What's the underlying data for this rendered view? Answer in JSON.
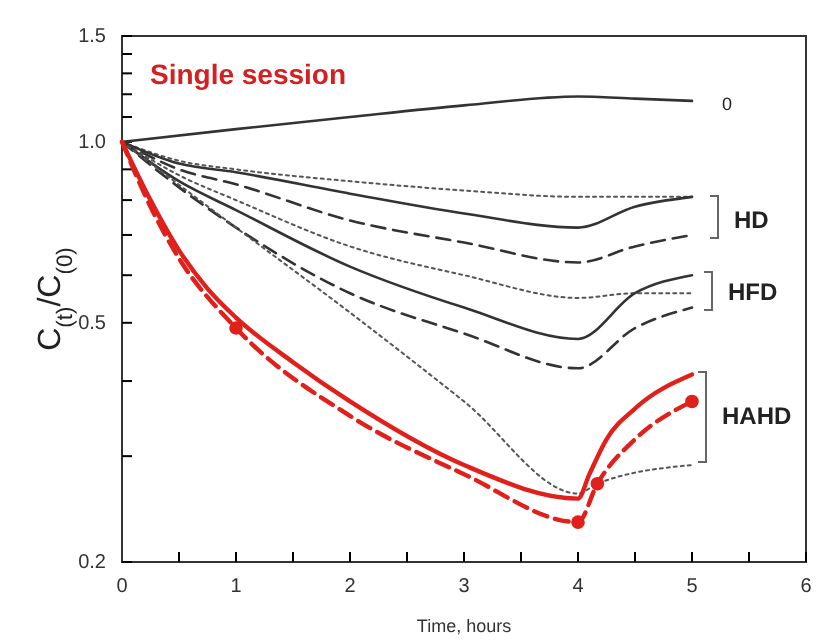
{
  "chart_data": {
    "type": "line",
    "title": "Single session",
    "xlabel": "Time, hours",
    "ylabel": "C$_{(t)}$/C$_{(0)}$",
    "log": true,
    "xlim": [
      0,
      6
    ],
    "xticks": [
      0,
      {
        "value": 0.5,
        "label": null
      },
      1,
      {
        "value": 1.5,
        "label": null
      },
      2,
      {
        "value": 2.5,
        "label": null
      },
      3,
      {
        "value": 3.5,
        "label": null
      },
      4,
      {
        "value": 4.5,
        "label": null
      },
      5,
      {
        "value": 5.5,
        "label": null
      },
      6
    ],
    "ylim": [
      0.2,
      1.5
    ],
    "yticks": [
      {
        "value": 0.2,
        "label": "0.2"
      },
      {
        "value": 0.3,
        "label": null
      },
      {
        "value": 0.4,
        "label": null
      },
      {
        "value": 0.5,
        "label": "0.5"
      },
      {
        "value": 0.6,
        "label": null
      },
      {
        "value": 0.7,
        "label": null
      },
      {
        "value": 0.8,
        "label": null
      },
      {
        "value": 0.9,
        "label": null
      },
      {
        "value": 1.0,
        "label": "1.0"
      },
      {
        "value": 1.1,
        "label": null
      },
      {
        "value": 1.2,
        "label": null
      },
      {
        "value": 1.3,
        "label": null
      },
      {
        "value": 1.4,
        "label": null
      },
      {
        "value": 1.5,
        "label": "1.5"
      }
    ],
    "series": [
      {
        "color": "#333333",
        "line_style": "solid",
        "x": [
          0,
          1,
          2,
          3,
          4,
          4.5,
          5
        ],
        "values": [
          1.0,
          1.05,
          1.1,
          1.15,
          1.19,
          1.18,
          1.17
        ]
      },
      {
        "color": "#555555",
        "line_style": "dotted",
        "x": [
          0,
          0.5,
          1,
          2,
          3,
          4,
          4.5,
          5
        ],
        "values": [
          1.0,
          0.93,
          0.9,
          0.86,
          0.83,
          0.81,
          0.81,
          0.81
        ]
      },
      {
        "color": "#333333",
        "line_style": "solid",
        "x": [
          0,
          0.5,
          1,
          2,
          3,
          4,
          4.5,
          5
        ],
        "values": [
          1.0,
          0.92,
          0.89,
          0.82,
          0.76,
          0.72,
          0.78,
          0.81
        ]
      },
      {
        "color": "#333333",
        "line_style": "dashed",
        "x": [
          0,
          0.5,
          1,
          2,
          3,
          4,
          4.5,
          5
        ],
        "values": [
          1.0,
          0.9,
          0.85,
          0.74,
          0.68,
          0.63,
          0.67,
          0.7
        ]
      },
      {
        "color": "#555555",
        "line_style": "dotted",
        "x": [
          0,
          0.5,
          1,
          2,
          3,
          4,
          4.5,
          5
        ],
        "values": [
          1.0,
          0.88,
          0.8,
          0.67,
          0.6,
          0.55,
          0.56,
          0.56
        ]
      },
      {
        "color": "#333333",
        "line_style": "solid",
        "x": [
          0,
          0.5,
          1,
          2,
          3,
          4,
          4.5,
          5
        ],
        "values": [
          1.0,
          0.86,
          0.77,
          0.62,
          0.53,
          0.47,
          0.56,
          0.6
        ]
      },
      {
        "color": "#333333",
        "line_style": "dashed",
        "x": [
          0,
          0.5,
          1,
          2,
          3,
          4,
          4.5,
          5
        ],
        "values": [
          1.0,
          0.84,
          0.72,
          0.56,
          0.48,
          0.42,
          0.49,
          0.53
        ]
      },
      {
        "color": "#555555",
        "line_style": "dotted",
        "x": [
          0,
          1,
          2,
          3,
          4,
          4.17,
          5
        ],
        "values": [
          1.0,
          0.72,
          0.52,
          0.37,
          0.26,
          0.27,
          0.29
        ]
      },
      {
        "color": "#e0201b",
        "line_style": "solid",
        "x": [
          0,
          0.25,
          0.5,
          0.75,
          1,
          1.5,
          2,
          3,
          4,
          4.1,
          4.25,
          4.5,
          5
        ],
        "values": [
          1.0,
          0.8,
          0.66,
          0.57,
          0.51,
          0.43,
          0.37,
          0.29,
          0.255,
          0.28,
          0.32,
          0.36,
          0.41
        ]
      },
      {
        "color": "#e0201b",
        "line_style": "dashed",
        "x": [
          0,
          0.25,
          0.5,
          1,
          2,
          3,
          4,
          4.17,
          4.5,
          5
        ],
        "values": [
          1.0,
          0.78,
          0.64,
          0.49,
          0.35,
          0.28,
          0.233,
          0.27,
          0.32,
          0.37
        ]
      },
      {
        "type": "scatter",
        "color": "#e0201b",
        "marker": "circle",
        "x": [
          1,
          4,
          4.17,
          5
        ],
        "values": [
          0.49,
          0.233,
          0.27,
          0.37
        ]
      }
    ],
    "annotations": [
      "0",
      "HD",
      "HFD",
      "HAHD"
    ]
  }
}
